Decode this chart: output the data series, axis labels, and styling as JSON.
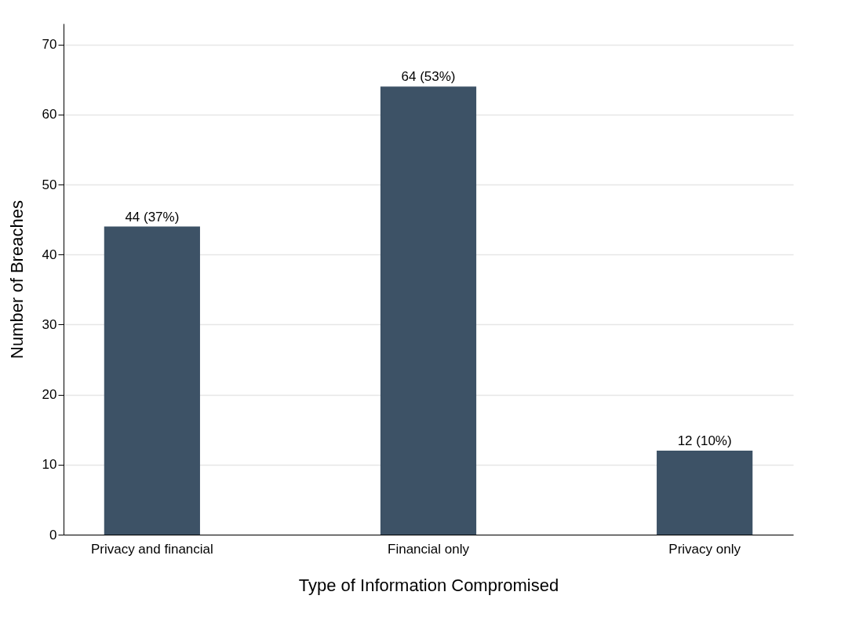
{
  "chart_data": {
    "type": "bar",
    "xlabel": "Type of Information Compromised",
    "ylabel": "Number of Breaches",
    "categories": [
      "Privacy and financial",
      "Financial only",
      "Privacy only"
    ],
    "values": [
      44,
      64,
      12
    ],
    "value_labels": [
      "44 (37%)",
      "64 (53%)",
      "12 (10%)"
    ],
    "color": "#3d5266",
    "ylim": [
      0,
      73
    ],
    "yticks": [
      0,
      10,
      20,
      30,
      40,
      50,
      60,
      70
    ],
    "grid": "y"
  }
}
